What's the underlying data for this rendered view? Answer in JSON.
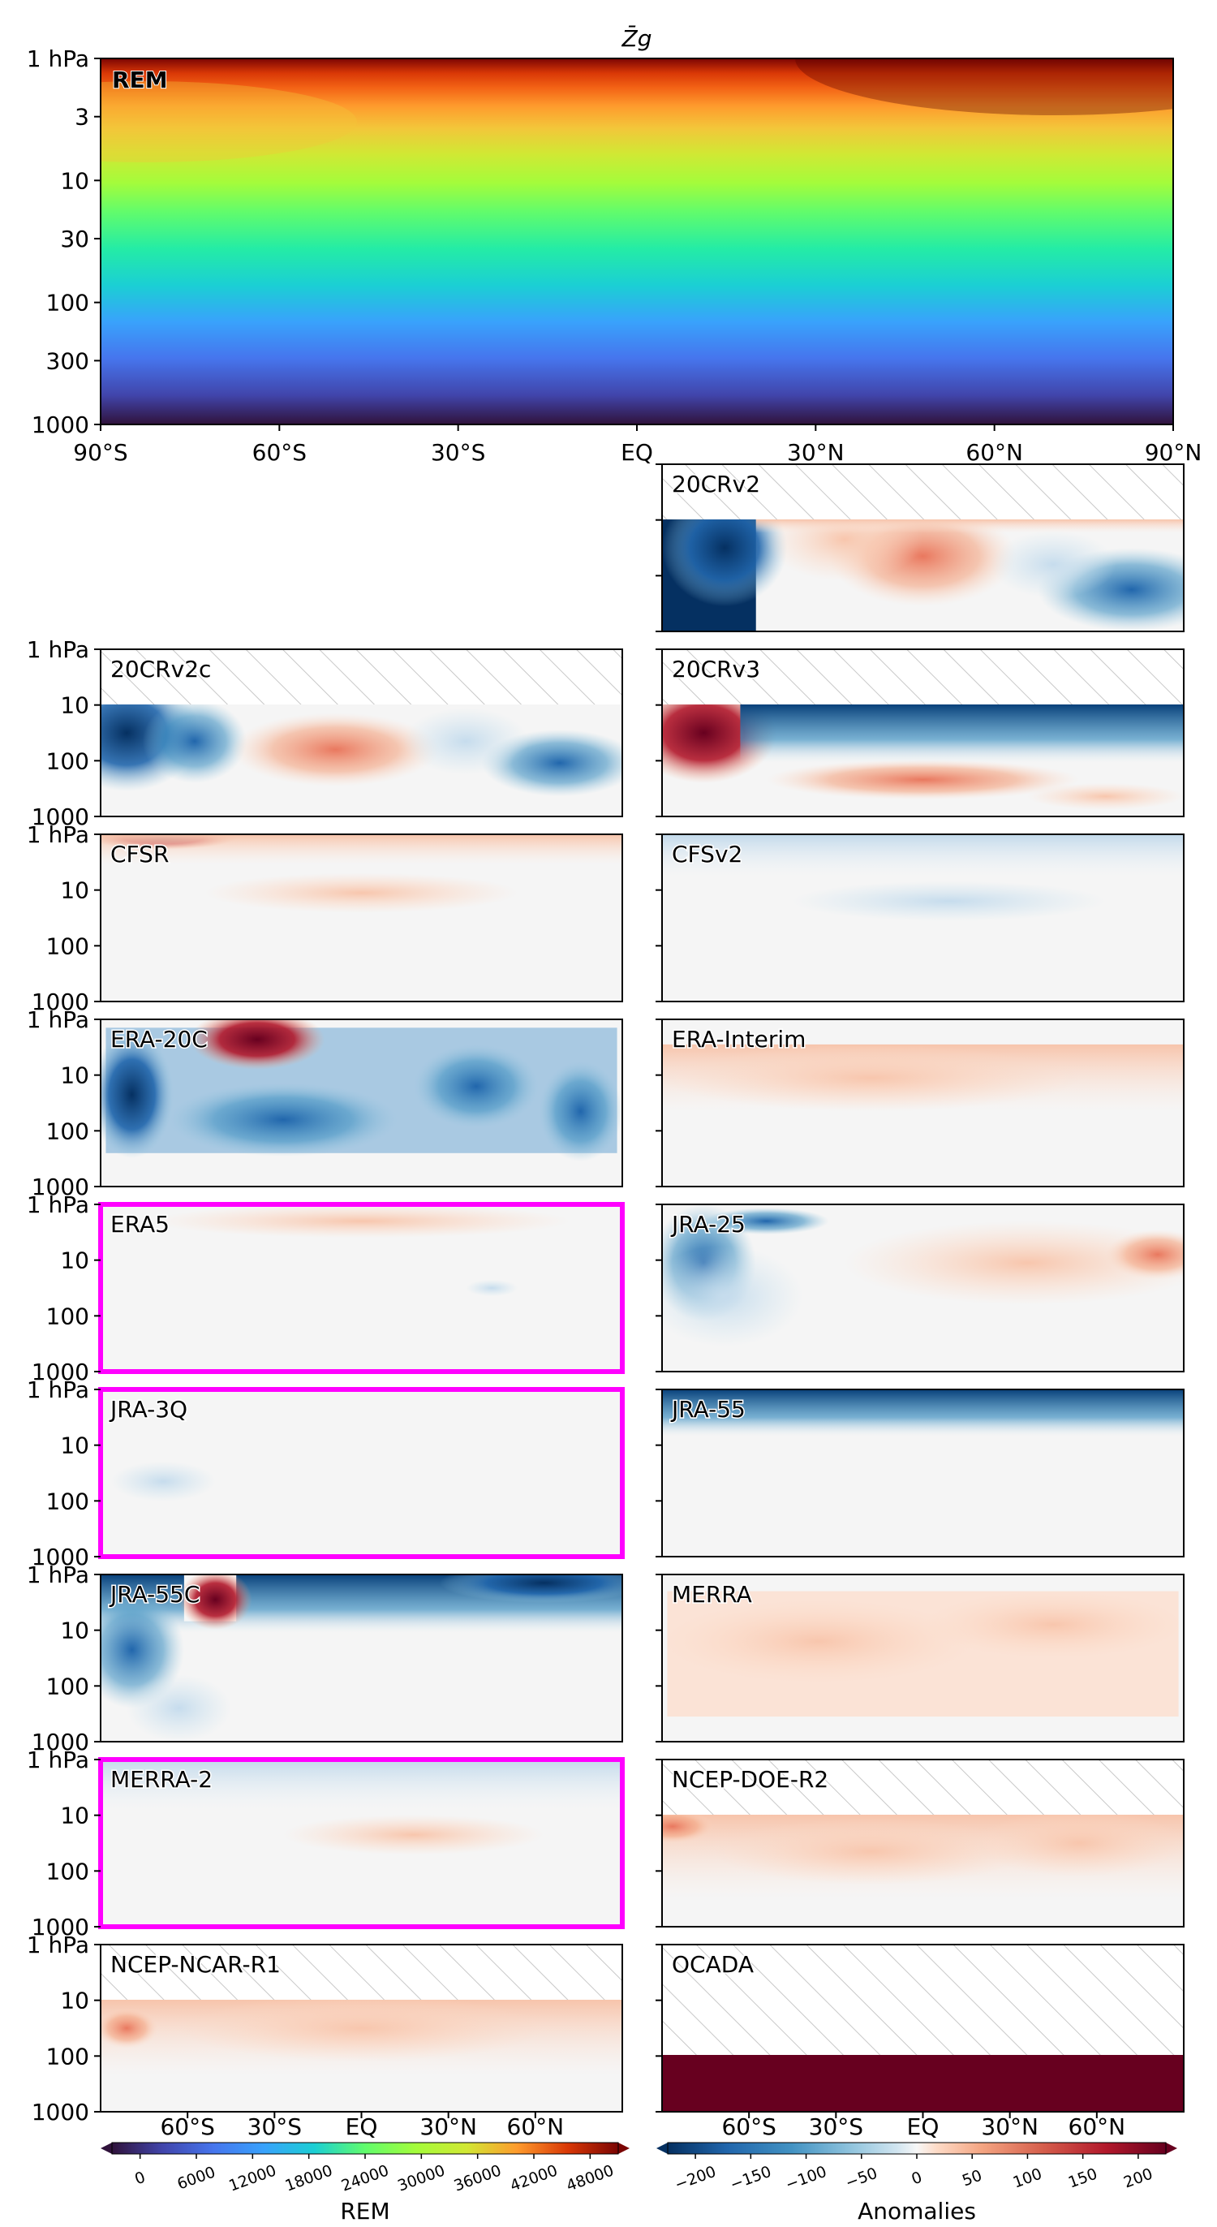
{
  "title": "Z̄g",
  "colors": {
    "highlight": "#ff00ff",
    "hatch": "#c8c8c8",
    "saturated_red": "#67001f",
    "saturated_blue": "#053061"
  },
  "top_panel": {
    "label": "REM",
    "y_ticks": [
      "1 hPa",
      "3",
      "10",
      "30",
      "100",
      "300",
      "1000"
    ],
    "x_ticks": [
      "90°S",
      "60°S",
      "30°S",
      "EQ",
      "30°N",
      "60°N",
      "90°N"
    ],
    "colormap": "turbo"
  },
  "panel_y_ticks": [
    "1 hPa",
    "10",
    "100",
    "1000"
  ],
  "bottom_x_ticks": [
    "60°S",
    "30°S",
    "EQ",
    "30°N",
    "60°N"
  ],
  "panels": [
    {
      "label": "20CRv2",
      "col": 1,
      "row": 0,
      "highlight": false,
      "hatch_top": true
    },
    {
      "label": "20CRv2c",
      "col": 0,
      "row": 1,
      "highlight": false,
      "hatch_top": true
    },
    {
      "label": "20CRv3",
      "col": 1,
      "row": 1,
      "highlight": false,
      "hatch_top": true
    },
    {
      "label": "CFSR",
      "col": 0,
      "row": 2,
      "highlight": false,
      "hatch_top": false
    },
    {
      "label": "CFSv2",
      "col": 1,
      "row": 2,
      "highlight": false,
      "hatch_top": false
    },
    {
      "label": "ERA-20C",
      "col": 0,
      "row": 3,
      "highlight": false,
      "hatch_top": false
    },
    {
      "label": "ERA-Interim",
      "col": 1,
      "row": 3,
      "highlight": false,
      "hatch_top": false
    },
    {
      "label": "ERA5",
      "col": 0,
      "row": 4,
      "highlight": true,
      "hatch_top": false
    },
    {
      "label": "JRA-25",
      "col": 1,
      "row": 4,
      "highlight": false,
      "hatch_top": false
    },
    {
      "label": "JRA-3Q",
      "col": 0,
      "row": 5,
      "highlight": true,
      "hatch_top": false
    },
    {
      "label": "JRA-55",
      "col": 1,
      "row": 5,
      "highlight": false,
      "hatch_top": false
    },
    {
      "label": "JRA-55C",
      "col": 0,
      "row": 6,
      "highlight": false,
      "hatch_top": false
    },
    {
      "label": "MERRA",
      "col": 1,
      "row": 6,
      "highlight": false,
      "hatch_top": false
    },
    {
      "label": "MERRA-2",
      "col": 0,
      "row": 7,
      "highlight": true,
      "hatch_top": false
    },
    {
      "label": "NCEP-DOE-R2",
      "col": 1,
      "row": 7,
      "highlight": false,
      "hatch_top": true
    },
    {
      "label": "NCEP-NCAR-R1",
      "col": 0,
      "row": 8,
      "highlight": false,
      "hatch_top": true
    },
    {
      "label": "OCADA",
      "col": 1,
      "row": 8,
      "highlight": false,
      "hatch_top": true
    }
  ],
  "colorbar_rem": {
    "ticks": [
      "0",
      "6000",
      "12000",
      "18000",
      "24000",
      "30000",
      "36000",
      "42000",
      "48000"
    ],
    "label": "REM"
  },
  "colorbar_anom": {
    "ticks": [
      "−200",
      "−150",
      "−100",
      "−50",
      "0",
      "50",
      "100",
      "150",
      "200"
    ],
    "label": "Anomalies"
  },
  "chart_data": {
    "type": "heatmap",
    "variable": "Z̄g",
    "x_axis": {
      "range": [
        -90,
        90
      ],
      "ticks": [
        "90°S",
        "60°S",
        "30°S",
        "EQ",
        "30°N",
        "60°N",
        "90°N"
      ]
    },
    "y_axis": {
      "range_hpa": [
        1000,
        1
      ],
      "scale": "log"
    },
    "rem_range": [
      0,
      48000
    ],
    "anomaly_range": [
      -200,
      200
    ],
    "highlighted": [
      "ERA5",
      "JRA-3Q",
      "MERRA-2"
    ]
  }
}
